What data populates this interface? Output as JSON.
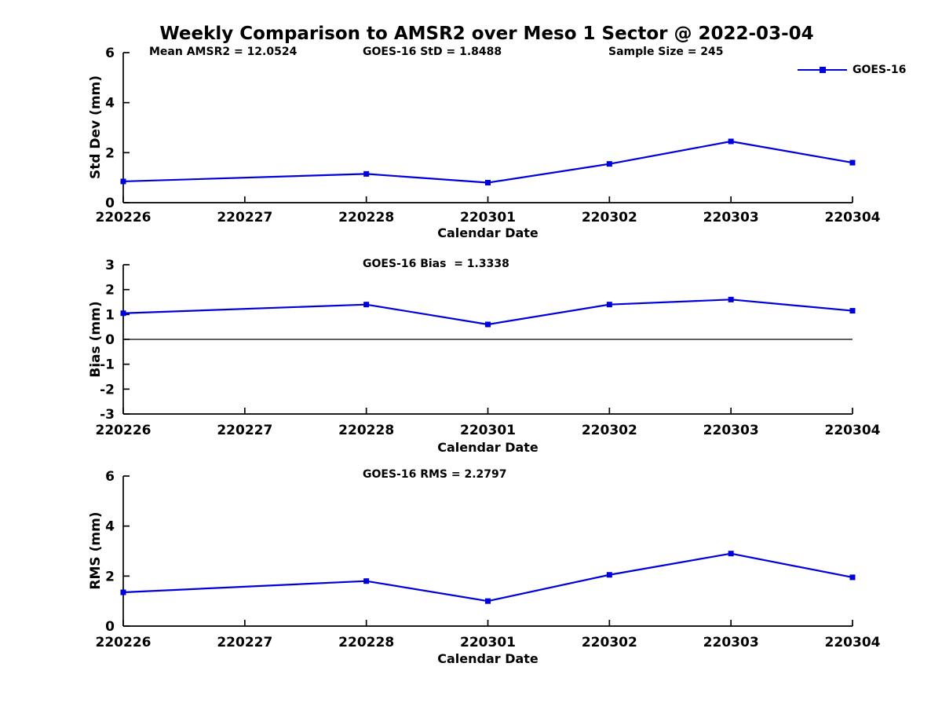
{
  "title": "Weekly Comparison to AMSR2 over Meso 1 Sector @ 2022-03-04",
  "colors": {
    "line": "#0000dd",
    "axis": "#000000",
    "zero_line": "#000000",
    "text": "#000000"
  },
  "chart_data": [
    {
      "type": "line",
      "name": "std-dev",
      "annotations": [
        "Mean AMSR2 = 12.0524",
        "GOES-16 StD = 1.8488",
        "Sample Size = 245"
      ],
      "xlabel": "Calendar Date",
      "ylabel": "Std Dev (mm)",
      "categories": [
        "220226",
        "220227",
        "220228",
        "220301",
        "220302",
        "220303",
        "220304"
      ],
      "ylim": [
        0,
        6
      ],
      "yticks": [
        0,
        2,
        4,
        6
      ],
      "legend": {
        "label": "GOES-16",
        "position": "top-right"
      },
      "series": [
        {
          "name": "GOES-16",
          "x_dates": [
            "220226",
            "220228",
            "220301",
            "220302",
            "220303",
            "220304"
          ],
          "values": [
            0.85,
            1.15,
            0.8,
            1.55,
            2.45,
            1.6
          ]
        }
      ]
    },
    {
      "type": "line",
      "name": "bias",
      "title": "GOES-16 Bias  = 1.3338",
      "xlabel": "Calendar Date",
      "ylabel": "Bias (mm)",
      "categories": [
        "220226",
        "220227",
        "220228",
        "220301",
        "220302",
        "220303",
        "220304"
      ],
      "ylim": [
        -3,
        3
      ],
      "yticks": [
        3,
        2,
        1,
        0,
        -1,
        -2,
        -3
      ],
      "zero_line": true,
      "series": [
        {
          "name": "GOES-16",
          "x_dates": [
            "220226",
            "220228",
            "220301",
            "220302",
            "220303",
            "220304"
          ],
          "values": [
            1.05,
            1.4,
            0.6,
            1.4,
            1.6,
            1.15
          ]
        }
      ]
    },
    {
      "type": "line",
      "name": "rms",
      "title": "GOES-16 RMS = 2.2797",
      "xlabel": "Calendar Date",
      "ylabel": "RMS (mm)",
      "categories": [
        "220226",
        "220227",
        "220228",
        "220301",
        "220302",
        "220303",
        "220304"
      ],
      "ylim": [
        0,
        6
      ],
      "yticks": [
        0,
        2,
        4,
        6
      ],
      "series": [
        {
          "name": "GOES-16",
          "x_dates": [
            "220226",
            "220228",
            "220301",
            "220302",
            "220303",
            "220304"
          ],
          "values": [
            1.35,
            1.8,
            1.0,
            2.05,
            2.9,
            1.95
          ]
        }
      ]
    }
  ]
}
